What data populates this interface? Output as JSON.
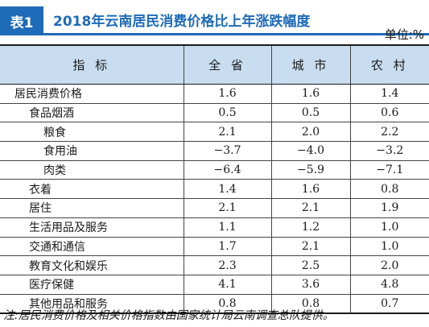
{
  "header": {
    "tag": "表1",
    "title": "2018年云南居民消费价格比上年涨跌幅度",
    "unit": "单位:%"
  },
  "table": {
    "columns": [
      "指  标",
      "全 省",
      "城 市",
      "农 村"
    ],
    "rows": [
      {
        "label": "居民消费价格",
        "level": 0,
        "values": [
          "1.6",
          "1.6",
          "1.4"
        ]
      },
      {
        "label": "食品烟酒",
        "level": 1,
        "values": [
          "0.5",
          "0.5",
          "0.6"
        ]
      },
      {
        "label": "粮食",
        "level": 2,
        "values": [
          "2.1",
          "2.0",
          "2.2"
        ]
      },
      {
        "label": "食用油",
        "level": 2,
        "values": [
          "−3.7",
          "−4.0",
          "−3.2"
        ]
      },
      {
        "label": "肉类",
        "level": 2,
        "values": [
          "−6.4",
          "−5.9",
          "−7.1"
        ]
      },
      {
        "label": "衣着",
        "level": 1,
        "values": [
          "1.4",
          "1.6",
          "0.8"
        ]
      },
      {
        "label": "居住",
        "level": 1,
        "values": [
          "2.1",
          "2.1",
          "1.9"
        ]
      },
      {
        "label": "生活用品及服务",
        "level": 1,
        "values": [
          "1.1",
          "1.2",
          "1.0"
        ]
      },
      {
        "label": "交通和通信",
        "level": 1,
        "values": [
          "1.7",
          "2.1",
          "1.0"
        ]
      },
      {
        "label": "教育文化和娱乐",
        "level": 1,
        "values": [
          "2.3",
          "2.5",
          "2.0"
        ]
      },
      {
        "label": "医疗保健",
        "level": 1,
        "values": [
          "4.1",
          "3.6",
          "4.8"
        ]
      },
      {
        "label": "其他用品和服务",
        "level": 1,
        "values": [
          "0.8",
          "0.8",
          "0.7"
        ]
      }
    ]
  },
  "note": "注:居民消费价格及相关价格指数由国家统计局云南调查总队提供。",
  "colors": {
    "accent": "#1e6bb8",
    "header_bg": "#c9ddf0"
  }
}
